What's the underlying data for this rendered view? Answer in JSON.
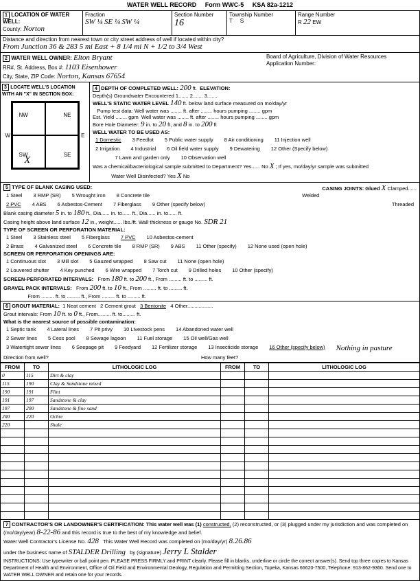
{
  "form": {
    "title": "WATER WELL RECORD",
    "formNo": "Form WWC-5",
    "ksa": "KSA 82a-1212"
  },
  "sec1": {
    "heading": "LOCATION OF WATER WELL:",
    "countyLabel": "County:",
    "county": "Norton",
    "fractionLabel": "Fraction",
    "fraction1": "SW ¼",
    "fraction2": "SE ¼",
    "fraction3": "SW ¼",
    "sectionLabel": "Section Number",
    "sectionNo": "16",
    "townshipLabel": "Township Number",
    "townshipT": "T",
    "townshipS": "S",
    "rangeLabel": "Range Number",
    "rangeR": "R",
    "rangeNo": "22",
    "rangeEW": "EW",
    "distLabel": "Distance and direction from nearest town or city street address of well if located within city?",
    "distance": "From Junction 36 & 283  5 mi East + 8 1/4 mi N + 1/2 to 3/4 West"
  },
  "sec2": {
    "heading": "WATER WELL OWNER:",
    "owner": "Elton Bryant",
    "addrLabel": "RR#, St. Address, Box #:",
    "addr": "1103 Eisenhower",
    "cityLabel": "City, State, ZIP Code:",
    "city": "Norton, Kansas 67654",
    "boardLabel": "Board of Agriculture, Division of Water Resources",
    "appLabel": "Application Number:"
  },
  "sec3": {
    "heading": "LOCATE WELL'S LOCATION WITH AN \"X\" IN SECTION BOX:",
    "nw": "NW",
    "ne": "NE",
    "sw": "SW",
    "se": "SE",
    "w": "W",
    "e": "E",
    "mark": "X",
    "mile": "1 Mile"
  },
  "sec4": {
    "heading": "DEPTH OF COMPLETED WELL:",
    "depth": "200",
    "ft": "ft.",
    "elevLabel": "ELEVATION:",
    "gwLabel": "Depth(s) Groundwater Encountered",
    "gw1": "1.",
    "gw2": "2.",
    "gw3": "3.",
    "staticLabel": "WELL'S STATIC WATER LEVEL",
    "static": "140",
    "staticAfter": "ft. below land surface measured on mo/day/yr",
    "pumpLabel": "Pump test data:",
    "wellWaterWas": "Well water was",
    "ftAfter": "ft. after",
    "hoursPumping": "hours pumping",
    "gpm": "gpm",
    "estYield": "Est. Yield",
    "boreLabel": "Bore Hole Diameter:",
    "bore1": "9",
    "boreIn": "in. to",
    "bore2": "20",
    "boreFtAnd": "ft, and",
    "bore3": "8",
    "boreInTo": "in. to",
    "bore4": "200",
    "boreFt": "ft",
    "useLabel": "WELL WATER TO BE USED AS:",
    "use1": "1 Domestic",
    "use2": "2 Irrigation",
    "use3": "3 Feedlot",
    "use4": "4 Industrial",
    "use5": "5 Public water supply",
    "use6": "6 Oil field water supply",
    "use7": "7 Lawn and garden only",
    "use8": "8 Air conditioning",
    "use9": "9 Dewatering",
    "use10": "10 Observation well",
    "use11": "11 Injection well",
    "use12": "12 Other (Specify below)",
    "chemLabel": "Was a chemical/bacteriological sample submitted to Department? Yes",
    "chemNo": "No",
    "chemX": "X",
    "chemAfter": "; If yes, mo/day/yr sample was submitted",
    "disinfectLabel": "Water Well Disinfected? Yes",
    "disinfectX": "X",
    "disinfectNo": "No"
  },
  "sec5": {
    "heading": "TYPE OF BLANK CASING USED:",
    "c1": "1 Steel",
    "c2": "2 PVC",
    "c3": "3 RMP (SR)",
    "c4": "4 ABS",
    "c5": "5 Wrought iron",
    "c6": "6 Asbestos-Cement",
    "c7": "7 Fiberglass",
    "c8": "8 Concrete tile",
    "c9": "9 Other (specify below)",
    "jointsLabel": "CASING JOINTS: Glued",
    "jointsX": "X",
    "jointsClamp": "Clamped",
    "jointsWeld": "Welded",
    "jointsThread": "Threaded",
    "blankLabel": "Blank casing diameter",
    "blankDia": "5",
    "blankIn": "in. to",
    "blankTo": "180",
    "blankFt": "ft., Dia",
    "blankIn2": "in. to",
    "blankFt2": "ft., Dia",
    "blankIn3": "in. to",
    "blankFt3": "ft.",
    "heightLabel": "Casing height above land surface",
    "height": "12",
    "heightIn": "in., weight",
    "heightLbs": "lbs./ft. Wall thickness or gauge No.",
    "gauge": "SDR 21",
    "screenLabel": "TYPE OF SCREEN OR PERFORATION MATERIAL:",
    "s1": "1 Steel",
    "s2": "2 Brass",
    "s3": "3 Stainless steel",
    "s4": "4 Galvanized steel",
    "s5": "5 Fiberglass",
    "s6": "6 Concrete tile",
    "s7": "7 PVC",
    "s8": "8 RMP (SR)",
    "s9": "9 ABS",
    "s10": "10 Asbestos-cement",
    "s11": "11 Other (specify)",
    "s12": "12 None used (open hole)",
    "openLabel": "SCREEN OR PERFORATION OPENINGS ARE:",
    "o1": "1 Continuous slot",
    "o2": "2 Louvered shutter",
    "o3": "3 Mill slot",
    "o4": "4 Key punched",
    "o5": "5 Gauzed wrapped",
    "o6": "6 Wire wrapped",
    "o7": "7 Torch cut",
    "o8": "8 Saw cut",
    "o9": "9 Drilled holes",
    "o10": "10 Other (specify)",
    "o11": "11 None (open hole)",
    "intLabel": "SCREEN-PERFORATED INTERVALS:",
    "intFrom": "From",
    "intTo": "ft. to",
    "int1f": "180",
    "int1t": "200",
    "gravelLabel": "GRAVEL PACK INTERVALS:",
    "g1f": "200",
    "g1t": "10"
  },
  "sec6": {
    "heading": "GROUT MATERIAL:",
    "g1": "1 Neat cement",
    "g2": "2 Cement grout",
    "g3": "3 Bentonite",
    "g4": "4 Other",
    "intLabel": "Grout intervals:",
    "from": "From",
    "gf": "10",
    "to": "ft. to",
    "gt": "0",
    "ftFrom": "ft., From",
    "ftTo": "ft. to",
    "ft": "ft.",
    "contamLabel": "What is the nearest source of possible contamination:",
    "p1": "1 Septic tank",
    "p2": "2 Sewer lines",
    "p3": "3 Watertight sewer lines",
    "p4": "4 Lateral lines",
    "p5": "5 Cess pool",
    "p6": "6 Seepage pit",
    "p7": "7 Pit privy",
    "p8": "8 Sewage lagoon",
    "p9": "9 Feedyard",
    "p10": "10 Livestock pens",
    "p11": "11 Fuel storage",
    "p12": "12 Fertilizer storage",
    "p13": "13 Insecticide storage",
    "p14": "14 Abandoned water well",
    "p15": "15 Oil well/Gas well",
    "p16": "16 Other (specify below)",
    "other": "Nothing in pasture",
    "dirLabel": "Direction from well?",
    "feetLabel": "How many feet?"
  },
  "lithTable": {
    "hFrom": "FROM",
    "hTo": "TO",
    "hLog": "LITHOLOGIC LOG",
    "rows": [
      {
        "from": "0",
        "to": "115",
        "log": "Dirt & clay"
      },
      {
        "from": "115",
        "to": "190",
        "log": "Clay & Sandstone mixed"
      },
      {
        "from": "190",
        "to": "191",
        "log": "Flint"
      },
      {
        "from": "191",
        "to": "197",
        "log": "Sandstone & clay"
      },
      {
        "from": "197",
        "to": "200",
        "log": "Sandstone & fine sand"
      },
      {
        "from": "200",
        "to": "220",
        "log": "Ochre"
      },
      {
        "from": "220",
        "to": "",
        "log": "Shale"
      }
    ]
  },
  "sec7": {
    "text1": "CONTRACTOR'S OR LANDOWNER'S CERTIFICATION: This water well was (1)",
    "constructed": "constructed,",
    "text2": "(2) reconstructed, or (3) plugged under my jurisdiction and was completed on (mo/day/year)",
    "date1": "8-22-86",
    "text3": "and this record is true to the best of my knowledge and belief.",
    "licLabel": "Water Well Contractor's License No.",
    "licNo": "428",
    "compLabel": "This Water Well Record was completed on (mo/day/yr)",
    "date2": "8.26.86",
    "busLabel": "under the business name of",
    "busName": "STALDER Drilling",
    "sigLabel": "by (signature)",
    "signature": "Jerry L Stalder",
    "instructions": "INSTRUCTIONS: Use typewriter or ball point pen. PLEASE PRESS FIRMLY and PRINT clearly. Please fill in blanks, underline or circle the correct answer(s). Send top three copies to Kansas Department of Health and Environment, Office of Oil Field and Environmental Geology, Regulation and Permitting Section, Topeka, Kansas 66620-7500, Telephone: 913-862-9360. Send one to WATER WELL OWNER and retain one for your records."
  },
  "colors": {
    "ink": "#000000",
    "bg": "#ffffff"
  }
}
